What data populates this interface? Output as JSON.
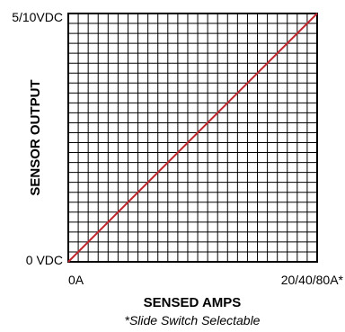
{
  "chart_data": {
    "type": "line",
    "x": [
      0,
      1
    ],
    "series": [
      {
        "values": [
          0,
          1
        ],
        "color": "#c1272d"
      }
    ],
    "xlim": [
      0,
      1
    ],
    "ylim": [
      0,
      1
    ],
    "grid": true,
    "grid_divisions": {
      "x": 25,
      "y": 25
    },
    "x_tick_labels": [
      "0A",
      "20/40/80A*"
    ],
    "y_tick_labels": [
      "0 VDC",
      "5/10VDC"
    ],
    "xlabel": "SENSED AMPS",
    "ylabel": "SENSOR OUTPUT",
    "note": "*Slide Switch Selectable",
    "grid_color": "#000000",
    "border_color": "#000000"
  }
}
